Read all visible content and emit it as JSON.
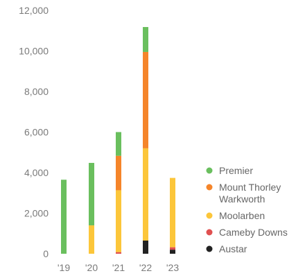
{
  "chart_data": {
    "type": "bar",
    "stacked": true,
    "categories": [
      "'19",
      "'20",
      "'21",
      "'22",
      "'23"
    ],
    "ylim": [
      0,
      12000
    ],
    "y_ticks": [
      0,
      2000,
      4000,
      6000,
      8000,
      10000,
      12000
    ],
    "y_tick_labels": [
      "0",
      "2,000",
      "4,000",
      "6,000",
      "8,000",
      "10,000",
      "12,000"
    ],
    "grid": false,
    "legend_position": "right",
    "series": [
      {
        "name": "Austar",
        "color": "#222222",
        "values": [
          0,
          0,
          0,
          650,
          200
        ]
      },
      {
        "name": "Cameby Downs",
        "color": "#e05050",
        "values": [
          0,
          0,
          80,
          0,
          120
        ]
      },
      {
        "name": "Moolarben",
        "color": "#fcc63a",
        "values": [
          0,
          1400,
          3050,
          4550,
          3420
        ]
      },
      {
        "name": "Mount Thorley Warkworth",
        "color": "#f5852a",
        "values": [
          0,
          0,
          1700,
          4750,
          0
        ]
      },
      {
        "name": "Premier",
        "color": "#6abf5e",
        "values": [
          3650,
          3080,
          1170,
          1230,
          0
        ]
      }
    ],
    "legend": [
      {
        "label_lines": [
          "Premier"
        ],
        "color": "#6abf5e"
      },
      {
        "label_lines": [
          "Mount Thorley",
          "Warkworth"
        ],
        "color": "#f5852a"
      },
      {
        "label_lines": [
          "Moolarben"
        ],
        "color": "#fcc63a"
      },
      {
        "label_lines": [
          "Cameby Downs"
        ],
        "color": "#e05050"
      },
      {
        "label_lines": [
          "Austar"
        ],
        "color": "#222222"
      }
    ]
  }
}
